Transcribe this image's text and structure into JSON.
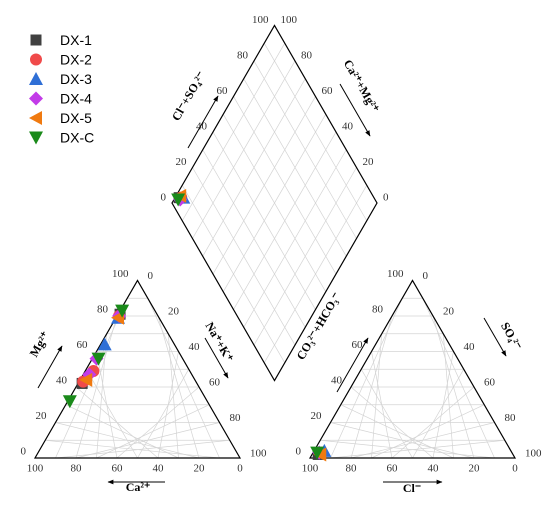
{
  "chart_data": {
    "type": "scatter",
    "subtype": "piper-trilinear",
    "title": "",
    "legend_position": "top-left",
    "grid": true,
    "cation_triangle": {
      "left_axis_label": "Mg²⁺",
      "bottom_axis_label": "Ca²⁺",
      "right_axis_label": "Na⁺+K⁺",
      "ticks": [
        "0",
        "20",
        "40",
        "60",
        "80",
        "100"
      ]
    },
    "anion_triangle": {
      "left_axis_label": "CO₃²⁻+HCO₃⁻",
      "bottom_axis_label": "Cl⁻",
      "right_axis_label": "SO₄²⁻",
      "ticks": [
        "0",
        "20",
        "40",
        "60",
        "80",
        "100"
      ]
    },
    "diamond": {
      "upper_left_label": "Cl⁻+SO₄²⁻",
      "upper_right_label": "Ca²⁺+Mg²⁺",
      "ticks": [
        "0",
        "20",
        "40",
        "60",
        "80",
        "100"
      ]
    },
    "series": [
      {
        "name": "DX-1",
        "marker": "square",
        "color": "#404040",
        "cations": [
          {
            "ca": 56,
            "mg": 42,
            "na_k": 2
          },
          {
            "ca": 18,
            "mg": 81,
            "na_k": 1
          }
        ],
        "anions": [
          {
            "cl": 3,
            "so4": 2,
            "co3_hco3": 95
          }
        ],
        "diamond": [
          {
            "cl_so4": 5,
            "ca_mg": 98
          }
        ]
      },
      {
        "name": "DX-2",
        "marker": "circle",
        "color": "#f04a4a",
        "cations": [
          {
            "ca": 47,
            "mg": 49,
            "na_k": 4
          },
          {
            "ca": 55,
            "mg": 43,
            "na_k": 2
          },
          {
            "ca": 19,
            "mg": 80,
            "na_k": 1
          }
        ],
        "anions": [
          {
            "cl": 4,
            "so4": 3,
            "co3_hco3": 93
          }
        ],
        "diamond": [
          {
            "cl_so4": 6,
            "ca_mg": 97
          }
        ]
      },
      {
        "name": "DX-3",
        "marker": "triangle-up",
        "color": "#2f6fd6",
        "cations": [
          {
            "ca": 34,
            "mg": 64,
            "na_k": 2
          },
          {
            "ca": 20,
            "mg": 79,
            "na_k": 1
          }
        ],
        "anions": [
          {
            "cl": 5,
            "so4": 4,
            "co3_hco3": 91
          }
        ],
        "diamond": [
          {
            "cl_so4": 7,
            "ca_mg": 96
          }
        ]
      },
      {
        "name": "DX-4",
        "marker": "diamond",
        "color": "#c23be8",
        "cations": [
          {
            "ca": 50,
            "mg": 47,
            "na_k": 3
          },
          {
            "ca": 42,
            "mg": 56,
            "na_k": 2
          },
          {
            "ca": 19,
            "mg": 80,
            "na_k": 1
          }
        ],
        "anions": [
          {
            "cl": 3,
            "so4": 3,
            "co3_hco3": 94
          }
        ],
        "diamond": [
          {
            "cl_so4": 5,
            "ca_mg": 97
          }
        ]
      },
      {
        "name": "DX-5",
        "marker": "triangle-left",
        "color": "#f07a10",
        "cations": [
          {
            "ca": 53,
            "mg": 44,
            "na_k": 3
          },
          {
            "ca": 20,
            "mg": 79,
            "na_k": 1
          }
        ],
        "anions": [
          {
            "cl": 4,
            "so4": 2,
            "co3_hco3": 94
          }
        ],
        "diamond": [
          {
            "cl_so4": 6,
            "ca_mg": 98
          }
        ]
      },
      {
        "name": "DX-C",
        "marker": "triangle-down",
        "color": "#1a8a1a",
        "cations": [
          {
            "ca": 67,
            "mg": 32,
            "na_k": 1
          },
          {
            "ca": 41,
            "mg": 56,
            "na_k": 3
          },
          {
            "ca": 16,
            "mg": 83,
            "na_k": 1
          }
        ],
        "anions": [
          {
            "cl": 2,
            "so4": 3,
            "co3_hco3": 95
          }
        ],
        "diamond": [
          {
            "cl_so4": 4,
            "ca_mg": 98
          }
        ]
      }
    ]
  }
}
